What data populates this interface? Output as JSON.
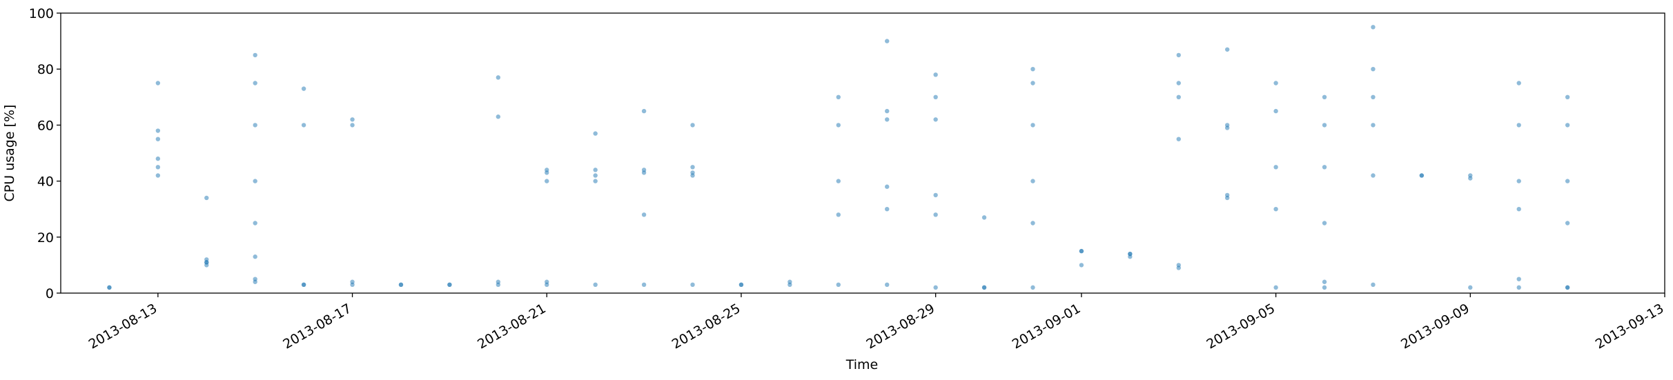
{
  "chart_data": {
    "type": "scatter",
    "xlabel": "Time",
    "ylabel": "CPU usage [%]",
    "color": "#1f77b4",
    "opacity": 0.5,
    "grid": false,
    "xlim": [
      "2013-08-11",
      "2013-09-13"
    ],
    "xticks": [
      "2013-08-13",
      "2013-08-17",
      "2013-08-21",
      "2013-08-25",
      "2013-08-29",
      "2013-09-01",
      "2013-09-05",
      "2013-09-09",
      "2013-09-13"
    ],
    "ylim": [
      0,
      100
    ],
    "yticks": [
      0,
      20,
      40,
      60,
      80,
      100
    ],
    "x": [
      "2013-08-12",
      "2013-08-12",
      "2013-08-13",
      "2013-08-13",
      "2013-08-13",
      "2013-08-13",
      "2013-08-13",
      "2013-08-13",
      "2013-08-14",
      "2013-08-14",
      "2013-08-14",
      "2013-08-14",
      "2013-08-14",
      "2013-08-15",
      "2013-08-15",
      "2013-08-15",
      "2013-08-15",
      "2013-08-15",
      "2013-08-15",
      "2013-08-15",
      "2013-08-15",
      "2013-08-16",
      "2013-08-16",
      "2013-08-16",
      "2013-08-16",
      "2013-08-17",
      "2013-08-17",
      "2013-08-17",
      "2013-08-17",
      "2013-08-18",
      "2013-08-18",
      "2013-08-19",
      "2013-08-19",
      "2013-08-20",
      "2013-08-20",
      "2013-08-20",
      "2013-08-20",
      "2013-08-21",
      "2013-08-21",
      "2013-08-21",
      "2013-08-21",
      "2013-08-21",
      "2013-08-22",
      "2013-08-22",
      "2013-08-22",
      "2013-08-22",
      "2013-08-22",
      "2013-08-23",
      "2013-08-23",
      "2013-08-23",
      "2013-08-23",
      "2013-08-23",
      "2013-08-24",
      "2013-08-24",
      "2013-08-24",
      "2013-08-24",
      "2013-08-24",
      "2013-08-25",
      "2013-08-25",
      "2013-08-26",
      "2013-08-26",
      "2013-08-27",
      "2013-08-27",
      "2013-08-27",
      "2013-08-27",
      "2013-08-27",
      "2013-08-28",
      "2013-08-28",
      "2013-08-28",
      "2013-08-28",
      "2013-08-28",
      "2013-08-28",
      "2013-08-29",
      "2013-08-29",
      "2013-08-29",
      "2013-08-29",
      "2013-08-29",
      "2013-08-29",
      "2013-08-30",
      "2013-08-30",
      "2013-08-30",
      "2013-08-31",
      "2013-08-31",
      "2013-08-31",
      "2013-08-31",
      "2013-08-31",
      "2013-08-31",
      "2013-09-01",
      "2013-09-01",
      "2013-09-01",
      "2013-09-02",
      "2013-09-02",
      "2013-09-02",
      "2013-09-03",
      "2013-09-03",
      "2013-09-03",
      "2013-09-03",
      "2013-09-03",
      "2013-09-03",
      "2013-09-04",
      "2013-09-04",
      "2013-09-04",
      "2013-09-04",
      "2013-09-04",
      "2013-09-05",
      "2013-09-05",
      "2013-09-05",
      "2013-09-05",
      "2013-09-05",
      "2013-09-06",
      "2013-09-06",
      "2013-09-06",
      "2013-09-06",
      "2013-09-06",
      "2013-09-06",
      "2013-09-07",
      "2013-09-07",
      "2013-09-07",
      "2013-09-07",
      "2013-09-07",
      "2013-09-07",
      "2013-09-08",
      "2013-09-08",
      "2013-09-09",
      "2013-09-09",
      "2013-09-09",
      "2013-09-10",
      "2013-09-10",
      "2013-09-10",
      "2013-09-10",
      "2013-09-10",
      "2013-09-10",
      "2013-09-11",
      "2013-09-11",
      "2013-09-11",
      "2013-09-11",
      "2013-09-11",
      "2013-09-11"
    ],
    "values": [
      2,
      2,
      45,
      55,
      58,
      48,
      42,
      75,
      11,
      11,
      10,
      12,
      34,
      13,
      5,
      4,
      60,
      75,
      85,
      40,
      25,
      3,
      3,
      60,
      73,
      3,
      4,
      60,
      62,
      3,
      3,
      3,
      3,
      3,
      4,
      63,
      77,
      4,
      44,
      43,
      40,
      3,
      3,
      44,
      42,
      40,
      57,
      3,
      43,
      44,
      28,
      65,
      3,
      45,
      43,
      42,
      60,
      3,
      3,
      3,
      4,
      3,
      60,
      70,
      40,
      28,
      3,
      62,
      65,
      38,
      30,
      90,
      2,
      62,
      70,
      35,
      28,
      78,
      2,
      2,
      27,
      2,
      75,
      60,
      40,
      25,
      80,
      10,
      15,
      15,
      14,
      13,
      14,
      9,
      10,
      70,
      85,
      55,
      75,
      35,
      34,
      59,
      87,
      60,
      2,
      65,
      45,
      30,
      75,
      4,
      2,
      60,
      45,
      25,
      70,
      3,
      70,
      60,
      80,
      95,
      42,
      42,
      42,
      42,
      41,
      2,
      2,
      60,
      75,
      40,
      30,
      5,
      2,
      60,
      40,
      25,
      70,
      2
    ]
  }
}
